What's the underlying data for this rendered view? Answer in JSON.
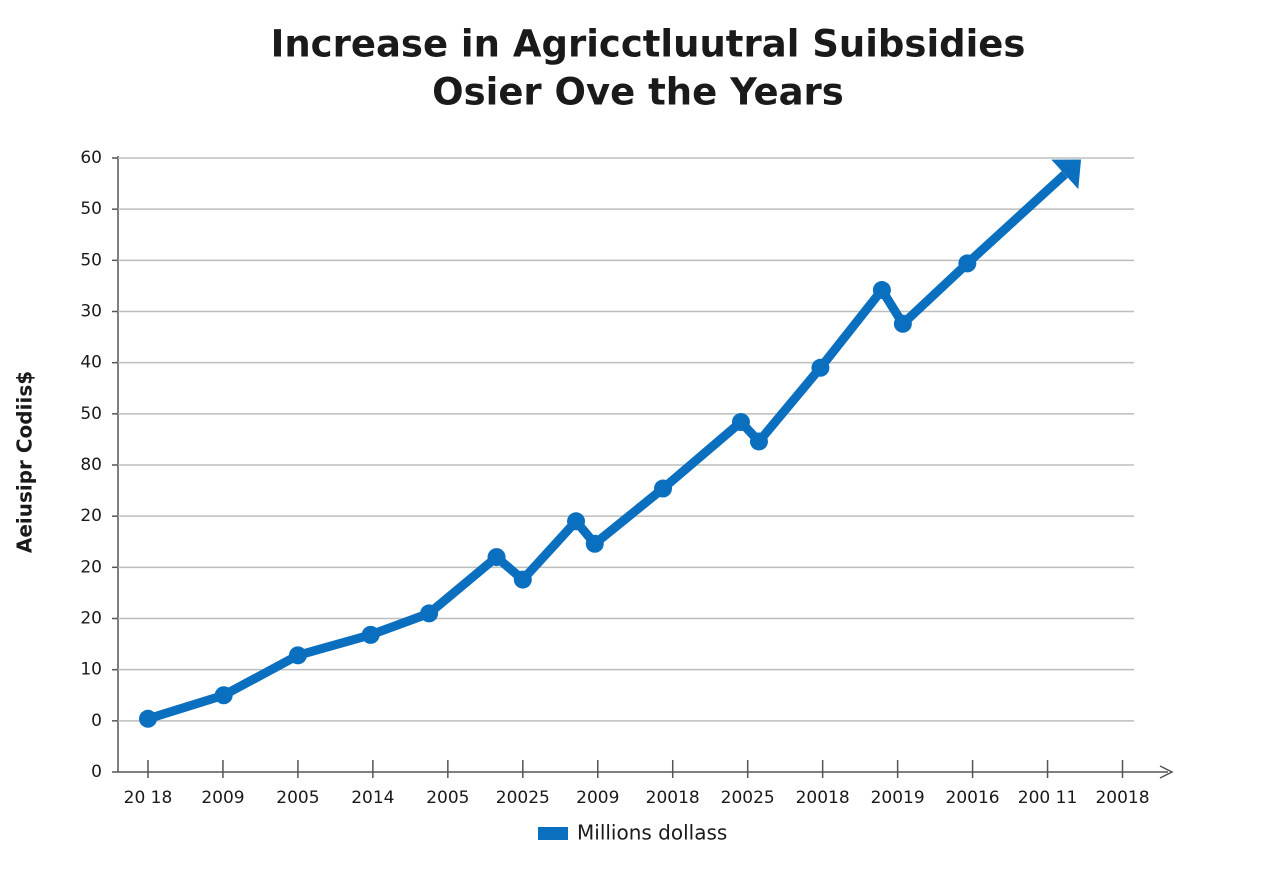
{
  "chart_data": {
    "type": "line",
    "title": [
      "Increase in Agricctluutral Suibsidies",
      "Osier Ove the Years"
    ],
    "y_label": "Aeiusipr Codiis$",
    "x": [
      0,
      1.01,
      2.0,
      2.97,
      3.75,
      4.65,
      5.0,
      5.71,
      5.96,
      6.87,
      7.91,
      8.15,
      8.97,
      9.79,
      10.07,
      10.93,
      12.23
    ],
    "series": [
      {
        "name": "Millions dollass",
        "color": "#0b6fc0",
        "values": [
          5.2,
          7.5,
          11.4,
          13.4,
          15.5,
          21.0,
          18.8,
          24.5,
          22.3,
          27.7,
          34.2,
          32.3,
          39.5,
          47.1,
          43.8,
          49.7,
          58.4
        ]
      }
    ],
    "xlim": [
      -0.4,
      13.5
    ],
    "xticks": [
      {
        "value": 0,
        "label": "20 18"
      },
      {
        "value": 1,
        "label": "2009"
      },
      {
        "value": 2,
        "label": "2005"
      },
      {
        "value": 3,
        "label": "2014"
      },
      {
        "value": 4,
        "label": "2005"
      },
      {
        "value": 5,
        "label": "20025"
      },
      {
        "value": 6,
        "label": "2009"
      },
      {
        "value": 7,
        "label": "20018"
      },
      {
        "value": 8,
        "label": "20025"
      },
      {
        "value": 9,
        "label": "20018"
      },
      {
        "value": 10,
        "label": "20019"
      },
      {
        "value": 11,
        "label": "20016"
      },
      {
        "value": 12,
        "label": "200 11"
      },
      {
        "value": 13,
        "label": "20018"
      }
    ],
    "ylim": [
      0,
      60
    ],
    "yticks": [
      0,
      {
        "value": 5,
        "label": "0"
      },
      10,
      {
        "value": 15,
        "label": "20"
      },
      20,
      {
        "value": 25,
        "label": "20"
      },
      {
        "value": 30,
        "label": "80"
      },
      {
        "value": 35,
        "label": "50"
      },
      40,
      {
        "value": 45,
        "label": "30"
      },
      50,
      {
        "value": 55,
        "label": "50"
      },
      60
    ],
    "grid": true
  }
}
